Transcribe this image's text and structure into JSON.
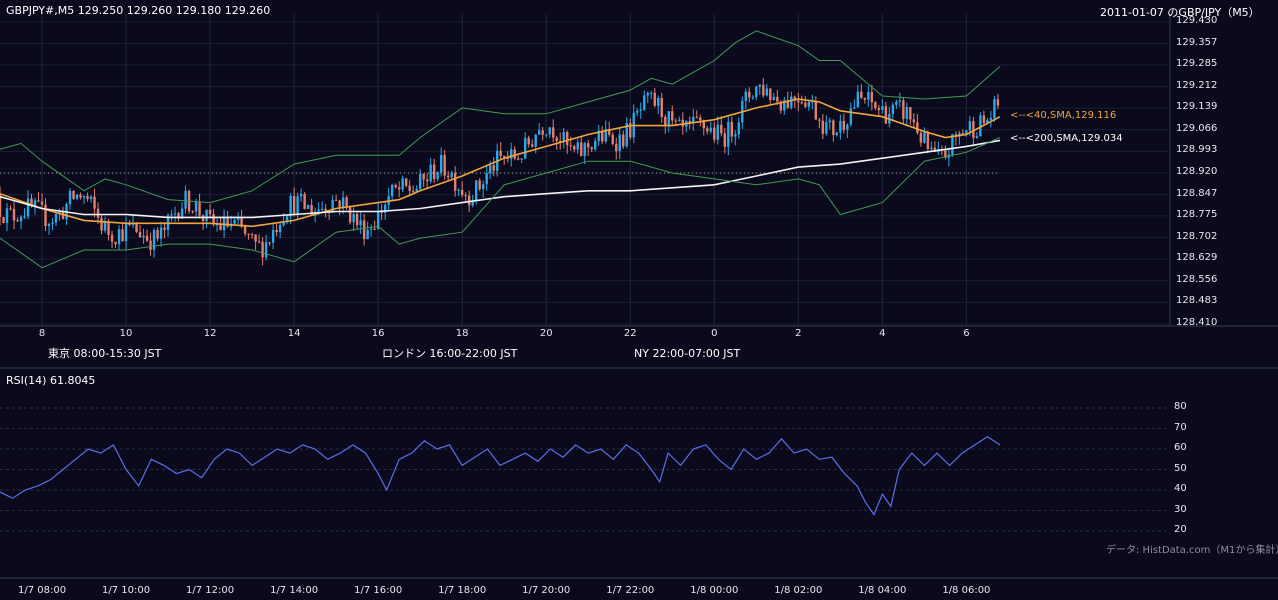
{
  "header": {
    "title": "GBPJPY#,M5 129.250 129.260 129.180 129.260",
    "right_title": "2011-01-07 のGBP/JPY（M5）"
  },
  "colors": {
    "background": "#0a0a1c",
    "candle_up": "#29a9e8",
    "candle_down": "#e57f6d",
    "sma40": "#f2a53c",
    "sma200": "#f2f2f2",
    "bollinger": "#3f9b52",
    "rsi_line": "#5b6ee8",
    "tokyo": "#244b7a",
    "london": "#8a5a17",
    "ny": "#2a5c3e"
  },
  "sessions": [
    {
      "label": "東京 08:00-15:30 JST",
      "color": "#244b7a"
    },
    {
      "label": "ロンドン 16:00-22:00 JST",
      "color": "#8a5a17"
    },
    {
      "label": "NY 22:00-07:00 JST",
      "color": "#2a5c3e"
    }
  ],
  "annotations": {
    "sma40": "<--<40,SMA,129.116",
    "sma200": "<--<200,SMA,129.034"
  },
  "rsi_label": "RSI(14) 61.8045",
  "credit": "データ: HistData.com（M1から集計）",
  "chart_data": [
    {
      "type": "candlestick",
      "title": "GBPJPY#,M5 129.250 129.260 129.180 129.260",
      "ylim": [
        128.41,
        129.43
      ],
      "y_ticks": [
        "129.430",
        "129.357",
        "129.285",
        "129.212",
        "129.139",
        "129.066",
        "128.993",
        "128.920",
        "128.847",
        "128.775",
        "128.702",
        "128.629",
        "128.556",
        "128.483",
        "128.410"
      ],
      "x_ticks": [
        "8",
        "10",
        "12",
        "14",
        "16",
        "18",
        "20",
        "22",
        "0",
        "2",
        "4",
        "6"
      ],
      "x_range_hours": [
        7.0,
        30.8
      ],
      "reference_line": 128.92,
      "series": [
        {
          "name": "SMA 40",
          "points": [
            [
              7.0,
              128.85
            ],
            [
              8.0,
              128.8
            ],
            [
              9.0,
              128.76
            ],
            [
              10.0,
              128.75
            ],
            [
              11.0,
              128.75
            ],
            [
              12.0,
              128.75
            ],
            [
              13.0,
              128.74
            ],
            [
              14.0,
              128.76
            ],
            [
              15.0,
              128.8
            ],
            [
              16.0,
              128.82
            ],
            [
              16.5,
              128.83
            ],
            [
              17.0,
              128.86
            ],
            [
              18.0,
              128.91
            ],
            [
              19.0,
              128.97
            ],
            [
              20.0,
              129.01
            ],
            [
              21.0,
              129.05
            ],
            [
              22.0,
              129.08
            ],
            [
              23.0,
              129.08
            ],
            [
              0.0,
              129.1
            ],
            [
              1.0,
              129.14
            ],
            [
              2.0,
              129.17
            ],
            [
              2.5,
              129.16
            ],
            [
              3.0,
              129.13
            ],
            [
              4.0,
              129.11
            ],
            [
              5.0,
              129.06
            ],
            [
              5.5,
              129.04
            ],
            [
              6.0,
              129.05
            ],
            [
              6.8,
              129.11
            ]
          ]
        },
        {
          "name": "SMA 200",
          "points": [
            [
              7.0,
              128.84
            ],
            [
              8.0,
              128.8
            ],
            [
              9.0,
              128.78
            ],
            [
              10.0,
              128.78
            ],
            [
              11.0,
              128.77
            ],
            [
              12.0,
              128.77
            ],
            [
              13.0,
              128.77
            ],
            [
              14.0,
              128.78
            ],
            [
              15.0,
              128.79
            ],
            [
              16.0,
              128.79
            ],
            [
              17.0,
              128.8
            ],
            [
              18.0,
              128.82
            ],
            [
              19.0,
              128.84
            ],
            [
              20.0,
              128.85
            ],
            [
              21.0,
              128.86
            ],
            [
              22.0,
              128.86
            ],
            [
              23.0,
              128.87
            ],
            [
              0.0,
              128.88
            ],
            [
              1.0,
              128.91
            ],
            [
              2.0,
              128.94
            ],
            [
              3.0,
              128.95
            ],
            [
              4.0,
              128.97
            ],
            [
              5.0,
              128.99
            ],
            [
              6.0,
              129.01
            ],
            [
              6.8,
              129.03
            ]
          ]
        },
        {
          "name": "Bollinger Upper",
          "points": [
            [
              7.0,
              129.0
            ],
            [
              7.5,
              129.02
            ],
            [
              8.0,
              128.96
            ],
            [
              9.0,
              128.86
            ],
            [
              9.5,
              128.9
            ],
            [
              10.0,
              128.88
            ],
            [
              11.0,
              128.83
            ],
            [
              12.0,
              128.82
            ],
            [
              13.0,
              128.86
            ],
            [
              14.0,
              128.95
            ],
            [
              15.0,
              128.98
            ],
            [
              16.0,
              128.98
            ],
            [
              16.5,
              128.98
            ],
            [
              17.0,
              129.04
            ],
            [
              18.0,
              129.14
            ],
            [
              19.0,
              129.12
            ],
            [
              20.0,
              129.12
            ],
            [
              21.0,
              129.16
            ],
            [
              22.0,
              129.2
            ],
            [
              22.5,
              129.24
            ],
            [
              23.0,
              129.22
            ],
            [
              0.0,
              129.3
            ],
            [
              0.5,
              129.36
            ],
            [
              1.0,
              129.4
            ],
            [
              2.0,
              129.35
            ],
            [
              2.5,
              129.3
            ],
            [
              3.0,
              129.3
            ],
            [
              4.0,
              129.18
            ],
            [
              5.0,
              129.17
            ],
            [
              6.0,
              129.18
            ],
            [
              6.8,
              129.28
            ]
          ]
        },
        {
          "name": "Bollinger Lower",
          "points": [
            [
              7.0,
              128.7
            ],
            [
              8.0,
              128.6
            ],
            [
              9.0,
              128.66
            ],
            [
              10.0,
              128.66
            ],
            [
              11.0,
              128.68
            ],
            [
              12.0,
              128.68
            ],
            [
              13.0,
              128.66
            ],
            [
              14.0,
              128.62
            ],
            [
              15.0,
              128.72
            ],
            [
              16.0,
              128.74
            ],
            [
              16.5,
              128.68
            ],
            [
              17.0,
              128.7
            ],
            [
              18.0,
              128.72
            ],
            [
              19.0,
              128.88
            ],
            [
              20.0,
              128.92
            ],
            [
              21.0,
              128.96
            ],
            [
              22.0,
              128.96
            ],
            [
              23.0,
              128.92
            ],
            [
              0.0,
              128.9
            ],
            [
              1.0,
              128.88
            ],
            [
              2.0,
              128.9
            ],
            [
              2.5,
              128.88
            ],
            [
              3.0,
              128.78
            ],
            [
              4.0,
              128.82
            ],
            [
              5.0,
              128.96
            ],
            [
              6.0,
              128.99
            ],
            [
              6.8,
              129.04
            ]
          ]
        }
      ]
    },
    {
      "type": "line",
      "title": "RSI(14) 61.8045",
      "ylim": [
        20,
        80
      ],
      "y_ticks": [
        "80",
        "70",
        "60",
        "50",
        "40",
        "30",
        "20"
      ],
      "x_ticks": [
        "1/7 08:00",
        "1/7 10:00",
        "1/7 12:00",
        "1/7 14:00",
        "1/7 16:00",
        "1/7 18:00",
        "1/7 20:00",
        "1/7 22:00",
        "1/8 00:00",
        "1/8 02:00",
        "1/8 04:00",
        "1/8 06:00"
      ],
      "x_range_hours": [
        7.0,
        30.8
      ],
      "series": [
        {
          "name": "RSI(14)",
          "points": [
            [
              7.0,
              39
            ],
            [
              7.3,
              36
            ],
            [
              7.6,
              40
            ],
            [
              7.9,
              42
            ],
            [
              8.2,
              45
            ],
            [
              8.5,
              50
            ],
            [
              8.8,
              55
            ],
            [
              9.1,
              60
            ],
            [
              9.4,
              58
            ],
            [
              9.7,
              62
            ],
            [
              10.0,
              50
            ],
            [
              10.3,
              42
            ],
            [
              10.6,
              55
            ],
            [
              10.9,
              52
            ],
            [
              11.2,
              48
            ],
            [
              11.5,
              50
            ],
            [
              11.8,
              46
            ],
            [
              12.1,
              55
            ],
            [
              12.4,
              60
            ],
            [
              12.7,
              58
            ],
            [
              13.0,
              52
            ],
            [
              13.3,
              56
            ],
            [
              13.6,
              60
            ],
            [
              13.9,
              58
            ],
            [
              14.2,
              62
            ],
            [
              14.5,
              60
            ],
            [
              14.8,
              55
            ],
            [
              15.1,
              58
            ],
            [
              15.4,
              62
            ],
            [
              15.7,
              58
            ],
            [
              16.0,
              48
            ],
            [
              16.2,
              40
            ],
            [
              16.5,
              55
            ],
            [
              16.8,
              58
            ],
            [
              17.1,
              64
            ],
            [
              17.4,
              60
            ],
            [
              17.7,
              62
            ],
            [
              18.0,
              52
            ],
            [
              18.3,
              56
            ],
            [
              18.6,
              60
            ],
            [
              18.9,
              52
            ],
            [
              19.2,
              55
            ],
            [
              19.5,
              58
            ],
            [
              19.8,
              54
            ],
            [
              20.1,
              60
            ],
            [
              20.4,
              56
            ],
            [
              20.7,
              62
            ],
            [
              21.0,
              58
            ],
            [
              21.3,
              60
            ],
            [
              21.6,
              55
            ],
            [
              21.9,
              62
            ],
            [
              22.2,
              58
            ],
            [
              22.5,
              50
            ],
            [
              22.7,
              44
            ],
            [
              22.9,
              58
            ],
            [
              23.2,
              52
            ],
            [
              23.5,
              60
            ],
            [
              23.8,
              62
            ],
            [
              24.1,
              55
            ],
            [
              24.4,
              50
            ],
            [
              24.7,
              60
            ],
            [
              25.0,
              55
            ],
            [
              25.3,
              58
            ],
            [
              25.6,
              65
            ],
            [
              25.9,
              58
            ],
            [
              26.2,
              60
            ],
            [
              26.5,
              55
            ],
            [
              26.8,
              56
            ],
            [
              27.1,
              48
            ],
            [
              27.4,
              42
            ],
            [
              27.6,
              34
            ],
            [
              27.8,
              28
            ],
            [
              28.0,
              38
            ],
            [
              28.2,
              32
            ],
            [
              28.4,
              50
            ],
            [
              28.7,
              58
            ],
            [
              29.0,
              52
            ],
            [
              29.3,
              58
            ],
            [
              29.6,
              52
            ],
            [
              29.9,
              58
            ],
            [
              30.2,
              62
            ],
            [
              30.5,
              66
            ],
            [
              30.8,
              62
            ]
          ]
        }
      ]
    }
  ]
}
